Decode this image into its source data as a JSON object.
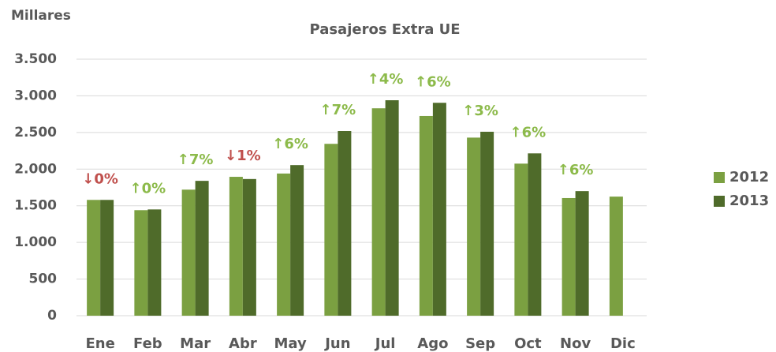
{
  "chart_data": {
    "type": "bar",
    "title": "Pasajeros Extra UE",
    "y_axis_label": "Millares",
    "categories": [
      "Ene",
      "Feb",
      "Mar",
      "Abr",
      "May",
      "Jun",
      "Jul",
      "Ago",
      "Sep",
      "Oct",
      "Nov",
      "Dic"
    ],
    "series": [
      {
        "name": "2012",
        "color": "#7ba041",
        "values": [
          1580,
          1440,
          1720,
          1895,
          1940,
          2345,
          2830,
          2725,
          2430,
          2075,
          1605,
          1625
        ]
      },
      {
        "name": "2013",
        "color": "#4f6b2a",
        "values": [
          1580,
          1450,
          1840,
          1865,
          2055,
          2520,
          2940,
          2905,
          2510,
          2215,
          1700,
          null
        ]
      }
    ],
    "annotations": [
      {
        "text": "↓0%",
        "color": "#c0504d"
      },
      {
        "text": "↑0%",
        "color": "#8cba4a"
      },
      {
        "text": "↑7%",
        "color": "#8cba4a"
      },
      {
        "text": "↓1%",
        "color": "#c0504d"
      },
      {
        "text": "↑6%",
        "color": "#8cba4a"
      },
      {
        "text": "↑7%",
        "color": "#8cba4a"
      },
      {
        "text": "↑4%",
        "color": "#8cba4a"
      },
      {
        "text": "↑6%",
        "color": "#8cba4a"
      },
      {
        "text": "↑3%",
        "color": "#8cba4a"
      },
      {
        "text": "↑6%",
        "color": "#8cba4a"
      },
      {
        "text": "↑6%",
        "color": "#8cba4a"
      },
      null
    ],
    "ylim": [
      0,
      3500
    ],
    "yticks": [
      0,
      500,
      {
        "value": 1000,
        "label": "1.000"
      },
      {
        "value": 1500,
        "label": "1.500"
      },
      {
        "value": 2000,
        "label": "2.000"
      },
      {
        "value": 2500,
        "label": "2.500"
      },
      {
        "value": 3000,
        "label": "3.000"
      },
      {
        "value": 3500,
        "label": "3.500"
      }
    ],
    "grid": true,
    "legend": "right"
  }
}
